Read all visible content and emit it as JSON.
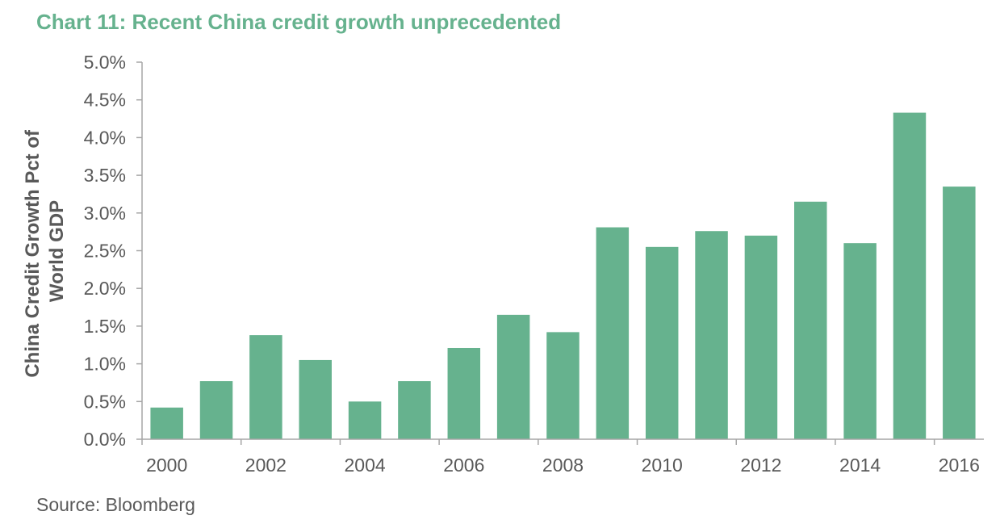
{
  "chart_data": {
    "type": "bar",
    "title": "Chart 11: Recent China credit growth unprecedented",
    "ylabel_lines": [
      "China Credit Growth Pct of",
      "World GDP"
    ],
    "xlabel": "",
    "categories": [
      "2000",
      "2001",
      "2002",
      "2003",
      "2004",
      "2005",
      "2006",
      "2007",
      "2008",
      "2009",
      "2010",
      "2011",
      "2012",
      "2013",
      "2014",
      "2015",
      "2016"
    ],
    "values": [
      0.42,
      0.77,
      1.38,
      1.05,
      0.5,
      0.77,
      1.21,
      1.65,
      1.42,
      2.81,
      2.55,
      2.76,
      2.7,
      3.15,
      2.6,
      4.33,
      3.35
    ],
    "ylim": [
      0,
      5.0
    ],
    "y_ticks": [
      "0.0%",
      "0.5%",
      "1.0%",
      "1.5%",
      "2.0%",
      "2.5%",
      "3.0%",
      "3.5%",
      "4.0%",
      "4.5%",
      "5.0%"
    ],
    "x_tick_labels": [
      "2000",
      "2002",
      "2004",
      "2006",
      "2008",
      "2010",
      "2012",
      "2014",
      "2016"
    ],
    "bar_color": "#66b28e",
    "grid": false,
    "source": "Source: Bloomberg"
  }
}
